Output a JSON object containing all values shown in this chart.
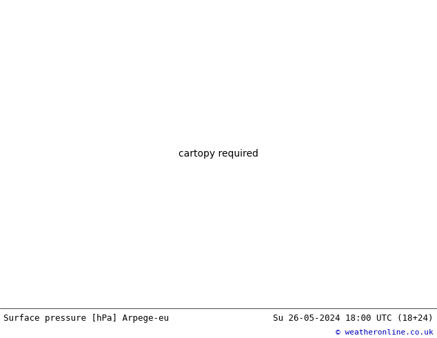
{
  "title_left": "Surface pressure [hPa] Arpege-eu",
  "title_right": "Su 26-05-2024 18:00 UTC (18+24)",
  "copyright": "© weatheronline.co.uk",
  "fig_width": 6.34,
  "fig_height": 4.9,
  "dpi": 100,
  "sea_color": "#e8eef5",
  "land_color_europe": "#c8dba0",
  "land_color_outside": "#b8b89a",
  "isobar_red": "#cc0000",
  "isobar_blue": "#0000bb",
  "isobar_black": "#000000",
  "footer_bg": "#ffffff",
  "label_fs": 7
}
